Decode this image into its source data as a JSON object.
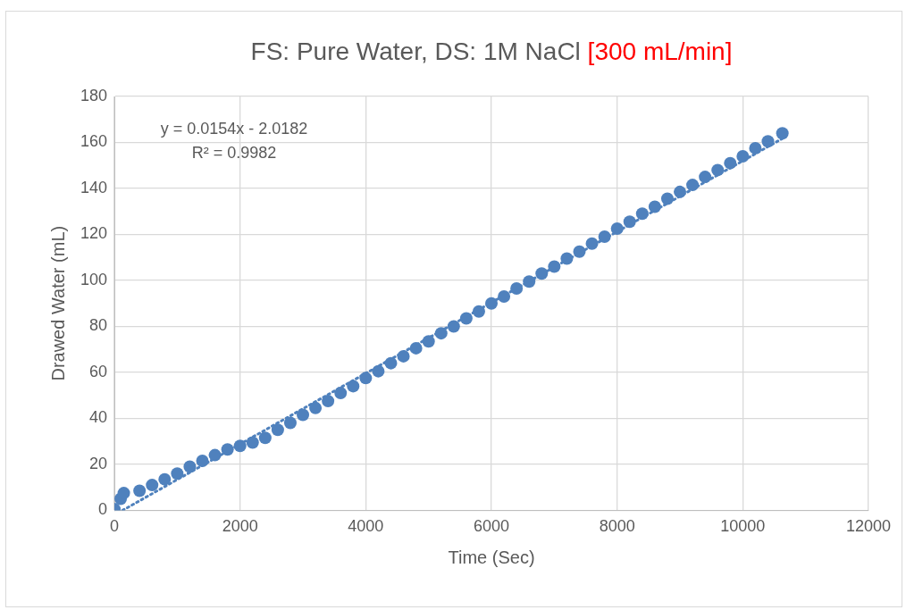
{
  "chart_data": {
    "type": "scatter",
    "title": "FS: Pure Water, DS: 1M NaCl",
    "subtitle": "[300 mL/min]",
    "xlabel": "Time (Sec)",
    "ylabel": "Drawed Water (mL)",
    "annotations": [
      "y = 0.0154x - 2.0182",
      "R² = 0.9982"
    ],
    "xlim": [
      0,
      12000
    ],
    "xticks": [
      0,
      2000,
      4000,
      6000,
      8000,
      10000,
      12000
    ],
    "ylim": [
      0,
      180
    ],
    "yticks": [
      0,
      20,
      40,
      60,
      80,
      100,
      120,
      140,
      160,
      180
    ],
    "grid": true,
    "series": [
      {
        "color": "#4f81bd",
        "marker": "circle",
        "x": [
          0,
          100,
          150,
          400,
          600,
          800,
          1000,
          1200,
          1400,
          1600,
          1800,
          2000,
          2200,
          2400,
          2600,
          2800,
          3000,
          3200,
          3400,
          3600,
          3800,
          4000,
          4200,
          4400,
          4600,
          4800,
          5000,
          5200,
          5400,
          5600,
          5800,
          6000,
          6200,
          6400,
          6600,
          6800,
          7000,
          7200,
          7400,
          7600,
          7800,
          8000,
          8200,
          8400,
          8600,
          8800,
          9000,
          9200,
          9400,
          9600,
          9800,
          10000,
          10200,
          10400,
          10630
        ],
        "values": [
          0.5,
          5,
          7.5,
          8.5,
          11,
          13.5,
          16,
          19,
          21.5,
          24,
          26.5,
          28,
          29.5,
          31.5,
          35,
          38,
          41.5,
          44.5,
          47.5,
          51,
          54,
          57.5,
          60.5,
          64,
          67,
          70.5,
          73.5,
          77,
          80,
          83.5,
          86.5,
          90,
          93,
          96.5,
          99.5,
          103,
          106,
          109.5,
          112.5,
          116,
          119,
          122.5,
          125.5,
          129,
          132,
          135.5,
          138.5,
          141.5,
          145,
          148,
          151,
          154,
          157.5,
          160.5,
          164
        ]
      },
      {
        "type": "line",
        "color": "#4f81bd",
        "marker": "none",
        "line_style": "dotted",
        "x": [
          131,
          10630
        ],
        "values": [
          0,
          161.7
        ]
      }
    ]
  }
}
